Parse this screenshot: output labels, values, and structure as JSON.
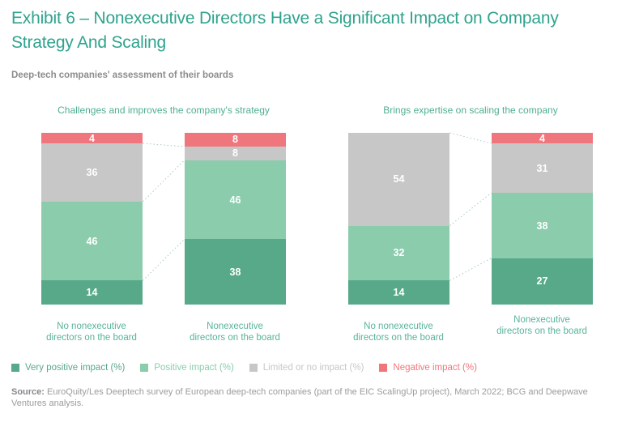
{
  "page": {
    "title": "Exhibit 6 – Nonexecutive Directors Have a Significant Impact on Company Strategy And Scaling",
    "subtitle": "Deep-tech companies' assessment of their boards",
    "source_label": "Source:",
    "source_text": " EuroQuity/Les Deeptech survey of European deep-tech companies (part of the EIC ScalingUp project), March 2022; BCG and Deepwave Ventures analysis."
  },
  "colors": {
    "very_positive": "#57A98A",
    "positive": "#8BCCAD",
    "limited": "#C7C7C7",
    "negative": "#F0767E",
    "title_teal": "#2FA38E",
    "label_green": "#58B399",
    "connector": "#A5CDC2"
  },
  "legend": [
    {
      "label": "Very positive impact (%)",
      "color_key": "very_positive"
    },
    {
      "label": "Positive impact (%)",
      "color_key": "positive"
    },
    {
      "label": "Limited or no impact (%)",
      "color_key": "limited"
    },
    {
      "label": "Negative impact (%)",
      "color_key": "negative"
    }
  ],
  "chart_data": {
    "type": "bar",
    "stacked": true,
    "unit": "%",
    "ylim": [
      0,
      100
    ],
    "grid": false,
    "legend_position": "bottom",
    "segment_order": [
      "very_positive",
      "positive",
      "limited",
      "negative"
    ],
    "segment_names": {
      "very_positive": "Very positive impact (%)",
      "positive": "Positive impact (%)",
      "limited": "Limited or no impact (%)",
      "negative": "Negative impact (%)"
    },
    "groups": [
      {
        "title": "Challenges and improves the company's strategy",
        "bars": [
          {
            "label": "No nonexecutive\ndirectors on the board",
            "values": {
              "very_positive": 14,
              "positive": 46,
              "limited": 36,
              "negative": 4
            }
          },
          {
            "label": "Nonexecutive\ndirectors on the board",
            "values": {
              "very_positive": 38,
              "positive": 46,
              "limited": 8,
              "negative": 8
            }
          }
        ]
      },
      {
        "title": "Brings expertise on scaling the company",
        "bars": [
          {
            "label": "No nonexecutive\ndirectors on the board",
            "values": {
              "very_positive": 14,
              "positive": 32,
              "limited": 54,
              "negative": 0
            }
          },
          {
            "label": "Nonexecutive\ndirectors on the board",
            "values": {
              "very_positive": 27,
              "positive": 38,
              "limited": 31,
              "negative": 4
            }
          }
        ]
      }
    ]
  }
}
